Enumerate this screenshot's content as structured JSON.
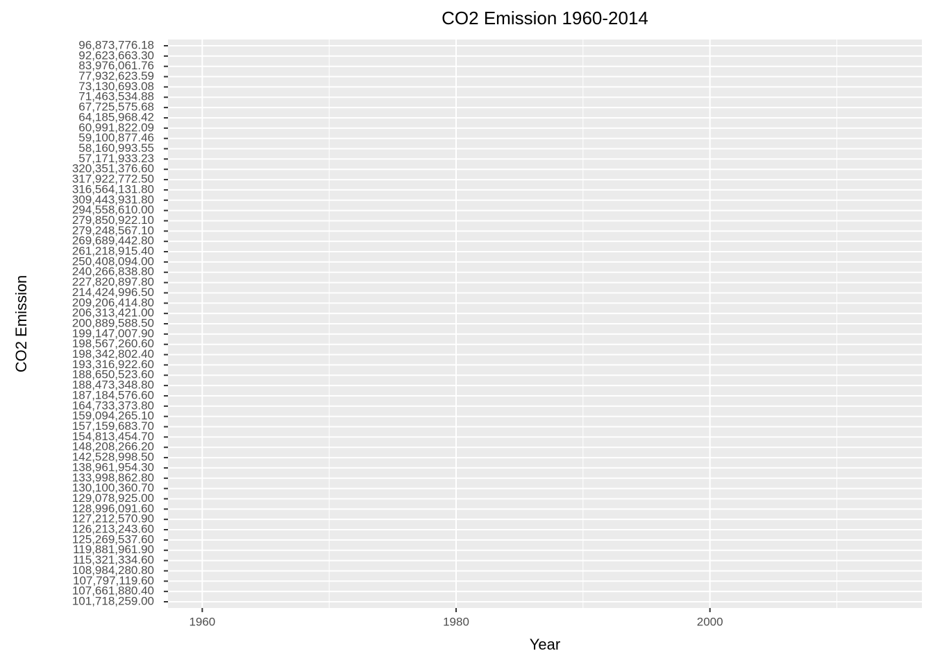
{
  "chart_data": {
    "type": "line",
    "title": "CO2 Emission 1960-2014",
    "x_label": "Year",
    "y_label": "CO2 Emission",
    "xlim": [
      1957.3,
      2016.7
    ],
    "xticks": [
      1960,
      1980,
      2000
    ],
    "grid": true,
    "y_categories": [
      "96,873,776.18",
      "92,623,663.30",
      "83,976,061.76",
      "77,932,623.59",
      "73,130,693.08",
      "71,463,534.88",
      "67,725,575.68",
      "64,185,968.42",
      "60,991,822.09",
      "59,100,877.46",
      "58,160,993.55",
      "57,171,933.23",
      "320,351,376.60",
      "317,922,772.50",
      "316,564,131.80",
      "309,443,931.80",
      "294,558,610.00",
      "279,850,922.10",
      "279,248,567.10",
      "269,689,442.80",
      "261,218,915.40",
      "250,408,094.00",
      "240,266,838.80",
      "227,820,897.80",
      "214,424,996.50",
      "209,206,414.80",
      "206,313,421.00",
      "200,889,588.50",
      "199,147,007.90",
      "198,567,260.60",
      "198,342,802.40",
      "193,316,922.60",
      "188,650,523.60",
      "188,473,348.80",
      "187,184,576.60",
      "164,733,373.80",
      "159,094,265.10",
      "157,159,683.70",
      "154,813,454.70",
      "148,208,266.20",
      "142,528,998.50",
      "138,961,954.30",
      "133,998,862.80",
      "130,100,360.70",
      "129,078,925.00",
      "128,996,091.60",
      "127,212,570.90",
      "126,213,243.60",
      "125,269,537.60",
      "119,881,961.90",
      "115,321,334.60",
      "108,984,280.80",
      "107,797,119.60",
      "107,661,880.40",
      "101,718,259.00"
    ]
  }
}
